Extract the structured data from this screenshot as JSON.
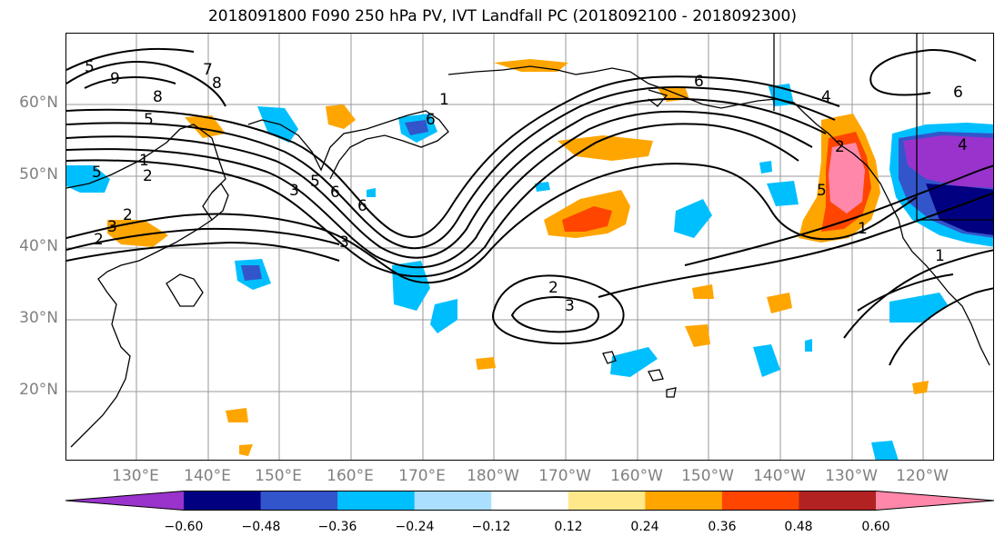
{
  "title": "2018091800 F090 250 hPa PV, IVT Landfall PC (2018092100 - 2018092300)",
  "map": {
    "latitude_labels": [
      "60°N",
      "50°N",
      "40°N",
      "30°N",
      "20°N"
    ],
    "longitude_labels": [
      "130°E",
      "140°E",
      "150°E",
      "160°E",
      "170°E",
      "180°W",
      "170°W",
      "160°W",
      "150°W",
      "140°W",
      "130°W",
      "120°W"
    ],
    "contour_labels": [
      "9",
      "8",
      "7",
      "5",
      "5",
      "1",
      "2",
      "3",
      "5",
      "6",
      "1",
      "6",
      "3",
      "2",
      "6",
      "5",
      "3",
      "2",
      "3",
      "2",
      "6",
      "4",
      "8",
      "5",
      "4",
      "2",
      "1",
      "1",
      "6"
    ]
  },
  "colorbar": {
    "colors": [
      "#9933cc",
      "#000080",
      "#3355cc",
      "#00bfff",
      "#aadfff",
      "#ffffff",
      "#ffe88a",
      "#ffa500",
      "#ff4500",
      "#b22222",
      "#ff88aa"
    ],
    "ticks": [
      "−0.60",
      "−0.48",
      "−0.36",
      "−0.24",
      "−0.12",
      "0.12",
      "0.24",
      "0.36",
      "0.48",
      "0.60"
    ]
  }
}
